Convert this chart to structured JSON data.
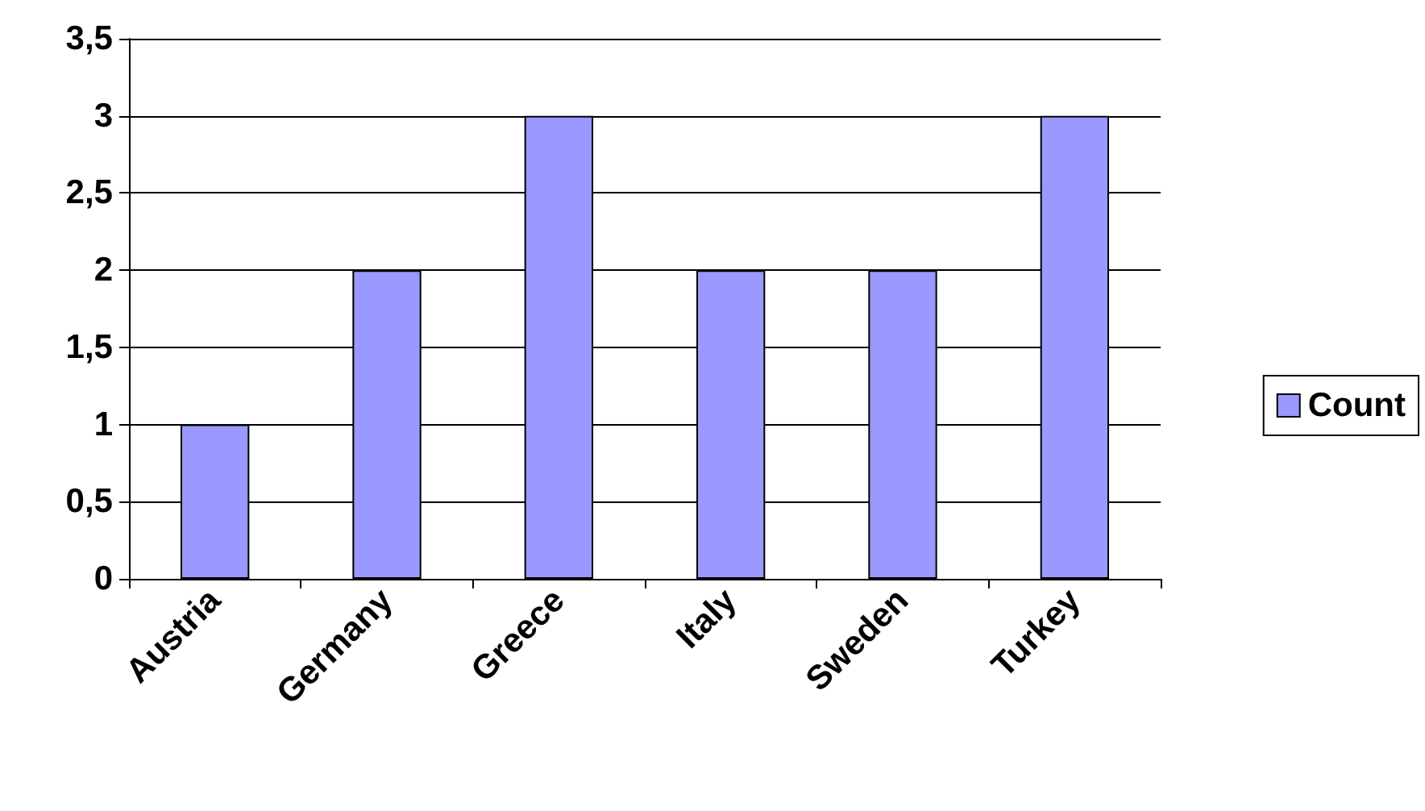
{
  "chart_data": {
    "type": "bar",
    "categories": [
      "Austria",
      "Germany",
      "Greece",
      "Italy",
      "Sweden",
      "Turkey"
    ],
    "series": [
      {
        "name": "Count",
        "color": "#9999ff",
        "values": [
          1,
          2,
          3,
          2,
          2,
          3
        ]
      }
    ],
    "ylim": [
      0,
      3.5
    ],
    "yticks": [
      0,
      {
        "value": 0.5,
        "label": "0,5"
      },
      1,
      {
        "value": 1.5,
        "label": "1,5"
      },
      2,
      {
        "value": 2.5,
        "label": "2,5"
      },
      3,
      {
        "value": 3.5,
        "label": "3,5"
      }
    ],
    "grid": "y",
    "legend": "right"
  }
}
